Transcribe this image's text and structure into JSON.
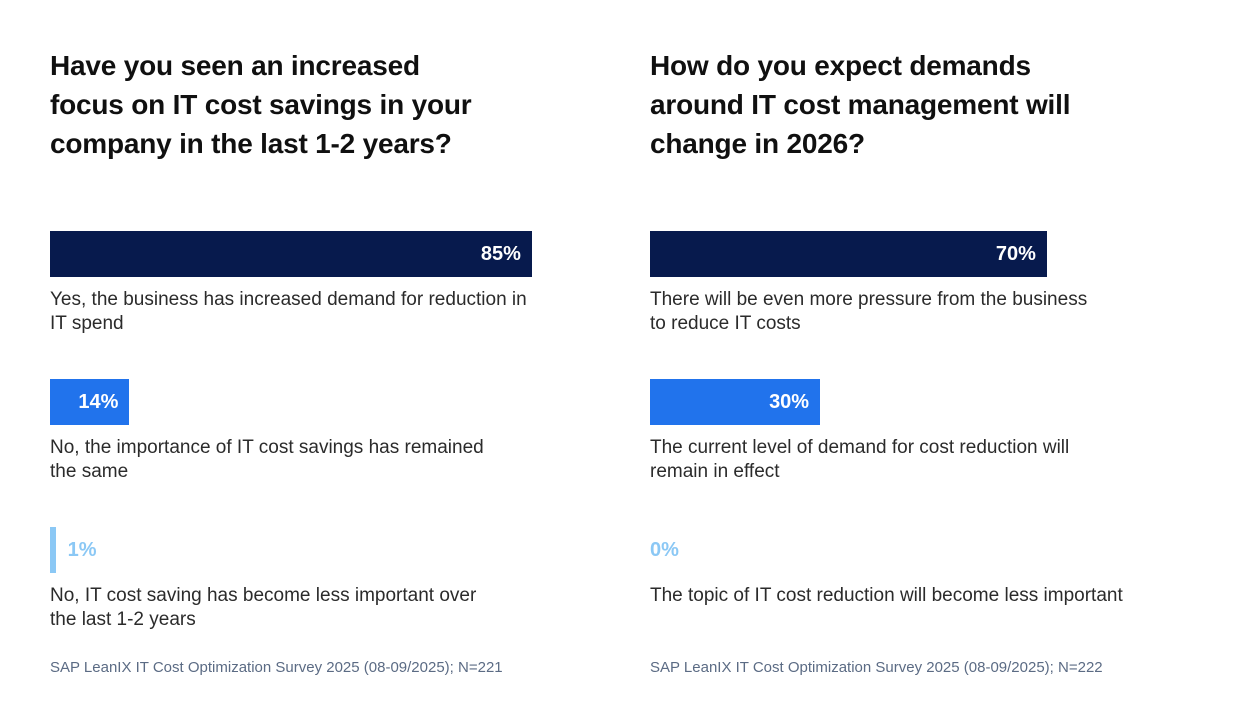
{
  "colors": {
    "navy": "#071A4D",
    "bright_blue": "#2173EC",
    "light_blue": "#8BC8F5",
    "title_text": "#101010",
    "label_text": "#2B2B2B",
    "footer_text": "#5B6B84",
    "background": "#FFFFFF"
  },
  "charts": [
    {
      "title": "Have you seen an increased\nfocus on IT cost savings in your\ncompany in the last 1-2 years?",
      "footer": "SAP LeanIX IT Cost Optimization Survey 2025 (08-09/2025); N=221",
      "bars": [
        {
          "value": 85,
          "value_label": "85%",
          "label": "Yes, the business has increased demand for reduction in\nIT spend",
          "color": "#071A4D"
        },
        {
          "value": 14,
          "value_label": "14%",
          "label": "No, the importance of IT cost savings has remained\nthe same",
          "color": "#2173EC"
        },
        {
          "value": 1,
          "value_label": "1%",
          "label": "No, IT cost saving has become less important over\nthe last 1-2 years",
          "color": "#8BC8F5"
        }
      ]
    },
    {
      "title": "How do you expect demands\naround IT cost management will\nchange in 2026?",
      "footer": "SAP LeanIX IT Cost Optimization Survey 2025 (08-09/2025); N=222",
      "bars": [
        {
          "value": 70,
          "value_label": "70%",
          "label": "There will be even more pressure from the business\nto reduce IT costs",
          "color": "#071A4D"
        },
        {
          "value": 30,
          "value_label": "30%",
          "label": "The current level of demand for cost reduction will\nremain in effect",
          "color": "#2173EC"
        },
        {
          "value": 0,
          "value_label": "0%",
          "label": "The topic of IT cost reduction will become less important",
          "color": "#8BC8F5"
        }
      ]
    }
  ],
  "chart_data": [
    {
      "type": "bar",
      "orientation": "horizontal",
      "title": "Have you seen an increased focus on IT cost savings in your company in the last 1-2 years?",
      "categories": [
        "Yes, the business has increased demand for reduction in IT spend",
        "No, the importance of IT cost savings has remained the same",
        "No, IT cost saving has become less important over the last 1-2 years"
      ],
      "values": [
        85,
        14,
        1
      ],
      "unit": "%",
      "xlim": [
        0,
        100
      ],
      "grid": false,
      "legend": false,
      "data_labels": [
        "85%",
        "14%",
        "1%"
      ],
      "bar_colors": [
        "#071A4D",
        "#2173EC",
        "#8BC8F5"
      ],
      "source": "SAP LeanIX IT Cost Optimization Survey 2025 (08-09/2025); N=221"
    },
    {
      "type": "bar",
      "orientation": "horizontal",
      "title": "How do you expect demands around IT cost management will change in 2026?",
      "categories": [
        "There will be even more pressure from the business to reduce IT costs",
        "The current level of demand for cost reduction will remain in effect",
        "The topic of IT cost reduction will become less important"
      ],
      "values": [
        70,
        30,
        0
      ],
      "unit": "%",
      "xlim": [
        0,
        100
      ],
      "grid": false,
      "legend": false,
      "data_labels": [
        "70%",
        "30%",
        "0%"
      ],
      "bar_colors": [
        "#071A4D",
        "#2173EC",
        "#8BC8F5"
      ],
      "source": "SAP LeanIX IT Cost Optimization Survey 2025 (08-09/2025); N=222"
    }
  ]
}
